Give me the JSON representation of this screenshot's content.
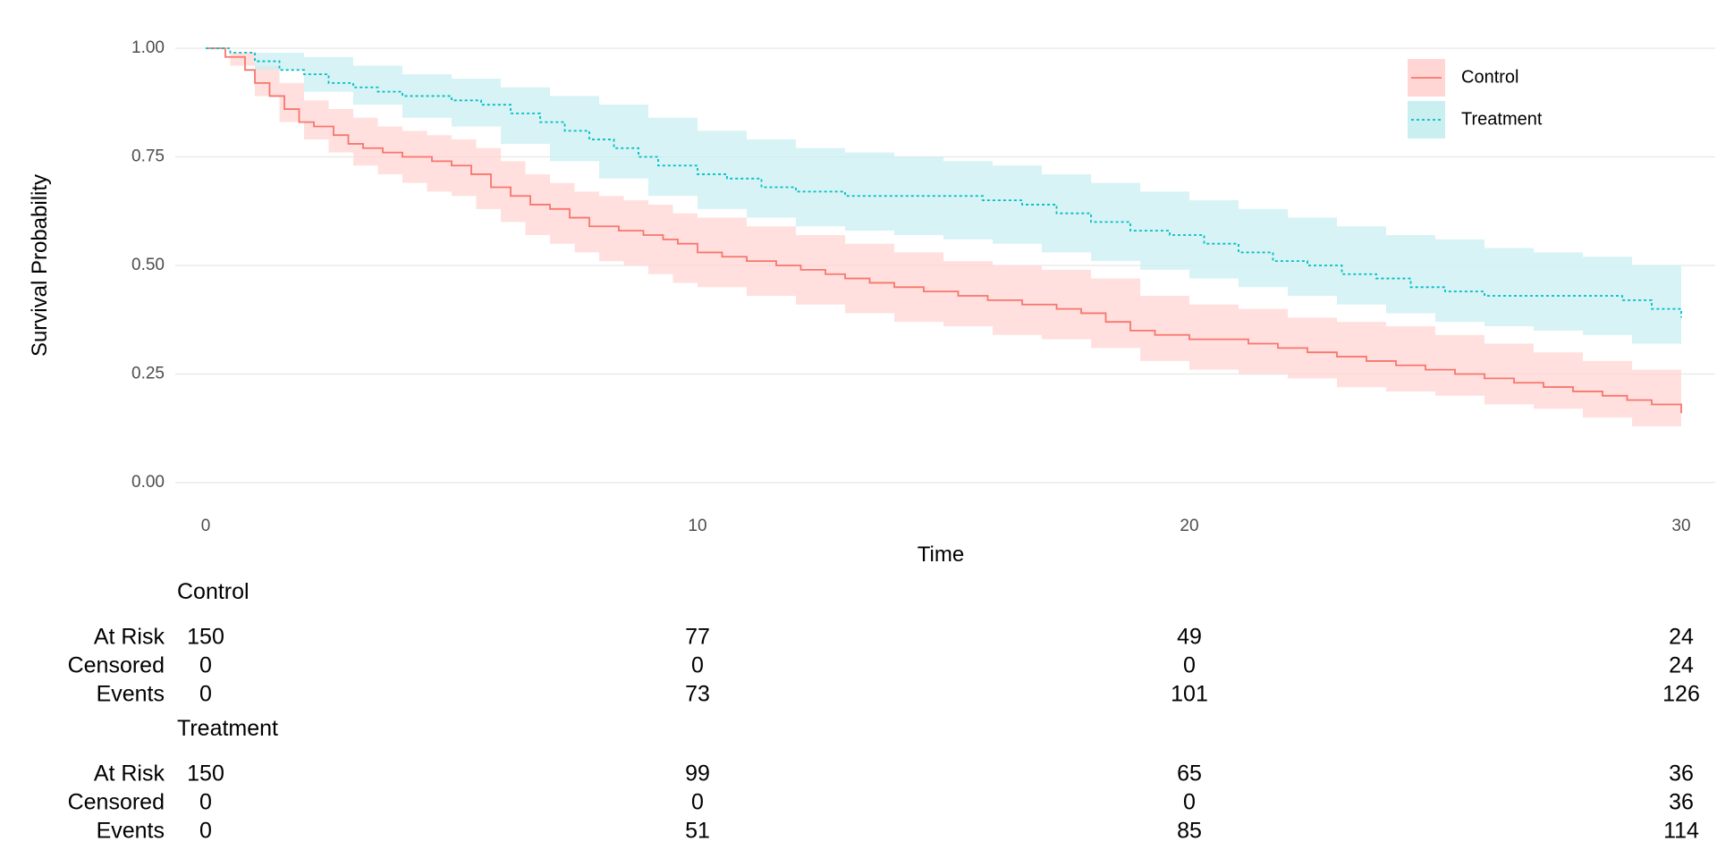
{
  "chart_data": {
    "type": "line",
    "subtype": "kaplan-meier survival curve with confidence bands",
    "xlabel": "Time",
    "ylabel": "Survival Probability",
    "xlim": [
      0,
      30
    ],
    "ylim": [
      0,
      1
    ],
    "x_ticks": [
      "0",
      "10",
      "20",
      "30"
    ],
    "y_ticks": [
      "0.00",
      "0.25",
      "0.50",
      "0.75",
      "1.00"
    ],
    "grid": true,
    "legend_position": "top-right",
    "series": [
      {
        "name": "Control",
        "color": "#F8766D",
        "band_color": "#FFD6D3",
        "line_style": "solid",
        "points": [
          [
            0,
            1.0
          ],
          [
            0.4,
            0.98
          ],
          [
            0.8,
            0.95
          ],
          [
            1.0,
            0.92
          ],
          [
            1.3,
            0.89
          ],
          [
            1.6,
            0.86
          ],
          [
            1.9,
            0.83
          ],
          [
            2.2,
            0.82
          ],
          [
            2.6,
            0.8
          ],
          [
            2.9,
            0.78
          ],
          [
            3.2,
            0.77
          ],
          [
            3.6,
            0.76
          ],
          [
            4.0,
            0.75
          ],
          [
            4.6,
            0.74
          ],
          [
            5.0,
            0.73
          ],
          [
            5.4,
            0.71
          ],
          [
            5.8,
            0.68
          ],
          [
            6.2,
            0.66
          ],
          [
            6.6,
            0.64
          ],
          [
            7.0,
            0.63
          ],
          [
            7.4,
            0.61
          ],
          [
            7.8,
            0.59
          ],
          [
            8.4,
            0.58
          ],
          [
            8.9,
            0.57
          ],
          [
            9.3,
            0.56
          ],
          [
            9.6,
            0.55
          ],
          [
            10.0,
            0.53
          ],
          [
            10.5,
            0.52
          ],
          [
            11.0,
            0.51
          ],
          [
            11.6,
            0.5
          ],
          [
            12.1,
            0.49
          ],
          [
            12.6,
            0.48
          ],
          [
            13.0,
            0.47
          ],
          [
            13.5,
            0.46
          ],
          [
            14.0,
            0.45
          ],
          [
            14.6,
            0.44
          ],
          [
            15.3,
            0.43
          ],
          [
            15.9,
            0.42
          ],
          [
            16.6,
            0.41
          ],
          [
            17.3,
            0.4
          ],
          [
            17.8,
            0.39
          ],
          [
            18.3,
            0.37
          ],
          [
            18.8,
            0.35
          ],
          [
            19.3,
            0.34
          ],
          [
            20.0,
            0.33
          ],
          [
            20.6,
            0.33
          ],
          [
            21.2,
            0.32
          ],
          [
            21.8,
            0.31
          ],
          [
            22.4,
            0.3
          ],
          [
            23.0,
            0.29
          ],
          [
            23.6,
            0.28
          ],
          [
            24.2,
            0.27
          ],
          [
            24.8,
            0.26
          ],
          [
            25.4,
            0.25
          ],
          [
            26.0,
            0.24
          ],
          [
            26.6,
            0.23
          ],
          [
            27.2,
            0.22
          ],
          [
            27.8,
            0.21
          ],
          [
            28.4,
            0.2
          ],
          [
            28.9,
            0.19
          ],
          [
            29.4,
            0.18
          ],
          [
            30.0,
            0.16
          ]
        ],
        "lower": [
          [
            0,
            1.0
          ],
          [
            0.5,
            0.96
          ],
          [
            1.0,
            0.89
          ],
          [
            1.5,
            0.83
          ],
          [
            2.0,
            0.79
          ],
          [
            2.5,
            0.76
          ],
          [
            3.0,
            0.73
          ],
          [
            3.5,
            0.71
          ],
          [
            4.0,
            0.69
          ],
          [
            4.5,
            0.67
          ],
          [
            5.0,
            0.66
          ],
          [
            5.5,
            0.63
          ],
          [
            6.0,
            0.6
          ],
          [
            6.5,
            0.57
          ],
          [
            7.0,
            0.55
          ],
          [
            7.5,
            0.53
          ],
          [
            8.0,
            0.51
          ],
          [
            8.5,
            0.5
          ],
          [
            9.0,
            0.48
          ],
          [
            9.5,
            0.46
          ],
          [
            10.0,
            0.45
          ],
          [
            11.0,
            0.43
          ],
          [
            12.0,
            0.41
          ],
          [
            13.0,
            0.39
          ],
          [
            14.0,
            0.37
          ],
          [
            15.0,
            0.36
          ],
          [
            16.0,
            0.34
          ],
          [
            17.0,
            0.33
          ],
          [
            18.0,
            0.31
          ],
          [
            19.0,
            0.28
          ],
          [
            20.0,
            0.26
          ],
          [
            21.0,
            0.25
          ],
          [
            22.0,
            0.24
          ],
          [
            23.0,
            0.22
          ],
          [
            24.0,
            0.21
          ],
          [
            25.0,
            0.2
          ],
          [
            26.0,
            0.18
          ],
          [
            27.0,
            0.17
          ],
          [
            28.0,
            0.15
          ],
          [
            29.0,
            0.13
          ],
          [
            30.0,
            0.11
          ]
        ],
        "upper": [
          [
            0,
            1.0
          ],
          [
            0.5,
            0.99
          ],
          [
            1.0,
            0.96
          ],
          [
            1.5,
            0.92
          ],
          [
            2.0,
            0.88
          ],
          [
            2.5,
            0.86
          ],
          [
            3.0,
            0.84
          ],
          [
            3.5,
            0.82
          ],
          [
            4.0,
            0.81
          ],
          [
            4.5,
            0.8
          ],
          [
            5.0,
            0.79
          ],
          [
            5.5,
            0.77
          ],
          [
            6.0,
            0.74
          ],
          [
            6.5,
            0.71
          ],
          [
            7.0,
            0.69
          ],
          [
            7.5,
            0.67
          ],
          [
            8.0,
            0.66
          ],
          [
            8.5,
            0.65
          ],
          [
            9.0,
            0.64
          ],
          [
            9.5,
            0.62
          ],
          [
            10.0,
            0.61
          ],
          [
            11.0,
            0.59
          ],
          [
            12.0,
            0.57
          ],
          [
            13.0,
            0.55
          ],
          [
            14.0,
            0.53
          ],
          [
            15.0,
            0.51
          ],
          [
            16.0,
            0.5
          ],
          [
            17.0,
            0.49
          ],
          [
            18.0,
            0.47
          ],
          [
            19.0,
            0.43
          ],
          [
            20.0,
            0.41
          ],
          [
            21.0,
            0.4
          ],
          [
            22.0,
            0.38
          ],
          [
            23.0,
            0.37
          ],
          [
            24.0,
            0.36
          ],
          [
            25.0,
            0.34
          ],
          [
            26.0,
            0.32
          ],
          [
            27.0,
            0.3
          ],
          [
            28.0,
            0.28
          ],
          [
            29.0,
            0.26
          ],
          [
            30.0,
            0.24
          ]
        ]
      },
      {
        "name": "Treatment",
        "color": "#00BFC4",
        "band_color": "#C9EFF1",
        "line_style": "dashed",
        "points": [
          [
            0,
            1.0
          ],
          [
            0.5,
            0.99
          ],
          [
            1.0,
            0.97
          ],
          [
            1.5,
            0.95
          ],
          [
            2.0,
            0.94
          ],
          [
            2.5,
            0.92
          ],
          [
            3.0,
            0.91
          ],
          [
            3.5,
            0.9
          ],
          [
            4.0,
            0.89
          ],
          [
            5.0,
            0.88
          ],
          [
            5.6,
            0.87
          ],
          [
            6.2,
            0.85
          ],
          [
            6.8,
            0.83
          ],
          [
            7.3,
            0.81
          ],
          [
            7.8,
            0.79
          ],
          [
            8.3,
            0.77
          ],
          [
            8.8,
            0.75
          ],
          [
            9.2,
            0.73
          ],
          [
            10.0,
            0.71
          ],
          [
            10.6,
            0.7
          ],
          [
            11.3,
            0.68
          ],
          [
            12.0,
            0.67
          ],
          [
            13.0,
            0.66
          ],
          [
            14.0,
            0.66
          ],
          [
            15.0,
            0.66
          ],
          [
            15.8,
            0.65
          ],
          [
            16.6,
            0.64
          ],
          [
            17.3,
            0.62
          ],
          [
            18.0,
            0.6
          ],
          [
            18.8,
            0.58
          ],
          [
            19.6,
            0.57
          ],
          [
            20.3,
            0.55
          ],
          [
            21.0,
            0.53
          ],
          [
            21.7,
            0.51
          ],
          [
            22.4,
            0.5
          ],
          [
            23.1,
            0.48
          ],
          [
            23.8,
            0.47
          ],
          [
            24.5,
            0.45
          ],
          [
            25.2,
            0.44
          ],
          [
            26.0,
            0.43
          ],
          [
            27.0,
            0.43
          ],
          [
            28.0,
            0.43
          ],
          [
            28.8,
            0.42
          ],
          [
            29.4,
            0.4
          ],
          [
            30.0,
            0.38
          ]
        ],
        "lower": [
          [
            0,
            1.0
          ],
          [
            1.0,
            0.95
          ],
          [
            2.0,
            0.9
          ],
          [
            3.0,
            0.87
          ],
          [
            4.0,
            0.84
          ],
          [
            5.0,
            0.82
          ],
          [
            6.0,
            0.78
          ],
          [
            7.0,
            0.74
          ],
          [
            8.0,
            0.7
          ],
          [
            9.0,
            0.66
          ],
          [
            10.0,
            0.63
          ],
          [
            11.0,
            0.61
          ],
          [
            12.0,
            0.59
          ],
          [
            13.0,
            0.58
          ],
          [
            14.0,
            0.57
          ],
          [
            15.0,
            0.56
          ],
          [
            16.0,
            0.55
          ],
          [
            17.0,
            0.53
          ],
          [
            18.0,
            0.51
          ],
          [
            19.0,
            0.49
          ],
          [
            20.0,
            0.47
          ],
          [
            21.0,
            0.45
          ],
          [
            22.0,
            0.43
          ],
          [
            23.0,
            0.41
          ],
          [
            24.0,
            0.39
          ],
          [
            25.0,
            0.37
          ],
          [
            26.0,
            0.36
          ],
          [
            27.0,
            0.35
          ],
          [
            28.0,
            0.34
          ],
          [
            29.0,
            0.32
          ],
          [
            30.0,
            0.3
          ]
        ],
        "upper": [
          [
            0,
            1.0
          ],
          [
            1.0,
            0.99
          ],
          [
            2.0,
            0.98
          ],
          [
            3.0,
            0.96
          ],
          [
            4.0,
            0.94
          ],
          [
            5.0,
            0.93
          ],
          [
            6.0,
            0.91
          ],
          [
            7.0,
            0.89
          ],
          [
            8.0,
            0.87
          ],
          [
            9.0,
            0.84
          ],
          [
            10.0,
            0.81
          ],
          [
            11.0,
            0.79
          ],
          [
            12.0,
            0.77
          ],
          [
            13.0,
            0.76
          ],
          [
            14.0,
            0.75
          ],
          [
            15.0,
            0.74
          ],
          [
            16.0,
            0.73
          ],
          [
            17.0,
            0.71
          ],
          [
            18.0,
            0.69
          ],
          [
            19.0,
            0.67
          ],
          [
            20.0,
            0.65
          ],
          [
            21.0,
            0.63
          ],
          [
            22.0,
            0.61
          ],
          [
            23.0,
            0.59
          ],
          [
            24.0,
            0.57
          ],
          [
            25.0,
            0.56
          ],
          [
            26.0,
            0.54
          ],
          [
            27.0,
            0.53
          ],
          [
            28.0,
            0.52
          ],
          [
            29.0,
            0.5
          ],
          [
            30.0,
            0.48
          ]
        ]
      }
    ],
    "risk_table": {
      "times": [
        "0",
        "10",
        "20",
        "30"
      ],
      "row_labels": [
        "At Risk",
        "Censored",
        "Events"
      ],
      "groups": [
        {
          "name": "Control",
          "rows": [
            [
              "150",
              "77",
              "49",
              "24"
            ],
            [
              "0",
              "0",
              "0",
              "24"
            ],
            [
              "0",
              "73",
              "101",
              "126"
            ]
          ]
        },
        {
          "name": "Treatment",
          "rows": [
            [
              "150",
              "99",
              "65",
              "36"
            ],
            [
              "0",
              "0",
              "0",
              "36"
            ],
            [
              "0",
              "51",
              "85",
              "114"
            ]
          ]
        }
      ]
    }
  }
}
